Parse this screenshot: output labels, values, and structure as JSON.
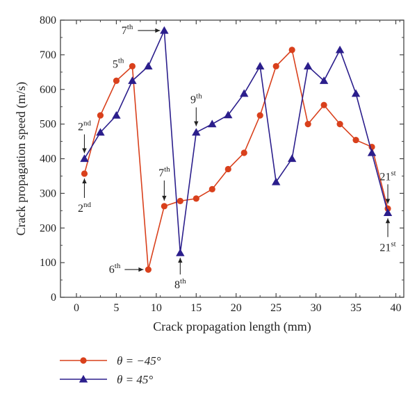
{
  "chart_data": {
    "type": "line",
    "xlabel": "Crack propagation length (mm)",
    "ylabel": "Crack propagation speed (m/s)",
    "xlim": [
      -2,
      41
    ],
    "ylim": [
      0,
      800
    ],
    "xticks": [
      0,
      5,
      10,
      15,
      20,
      25,
      30,
      35,
      40
    ],
    "yticks": [
      0,
      100,
      200,
      300,
      400,
      500,
      600,
      700,
      800
    ],
    "grid": false,
    "legend_position": "bottom-left",
    "series": [
      {
        "name": "θ = −45°",
        "color": "#d9401c",
        "marker": "circle",
        "x": [
          1,
          3,
          5,
          7,
          9,
          11,
          13,
          15,
          17,
          19,
          21,
          23,
          25,
          27,
          29,
          31,
          33,
          35,
          37,
          39
        ],
        "values": [
          357,
          525,
          625,
          667,
          80,
          263,
          278,
          285,
          312,
          370,
          417,
          525,
          667,
          714,
          500,
          555,
          500,
          454,
          434,
          256
        ]
      },
      {
        "name": "θ = 45°",
        "color": "#2b1e8c",
        "marker": "triangle",
        "x": [
          1,
          3,
          5,
          7,
          9,
          11,
          13,
          15,
          17,
          19,
          21,
          23,
          25,
          27,
          29,
          31,
          33,
          35,
          37,
          39
        ],
        "values": [
          400,
          476,
          525,
          625,
          667,
          770,
          128,
          476,
          500,
          526,
          588,
          667,
          333,
          400,
          667,
          625,
          714,
          588,
          417,
          244
        ]
      }
    ],
    "annotations": [
      {
        "base": "7",
        "sup": "th"
      },
      {
        "base": "5",
        "sup": "th"
      },
      {
        "base": "2",
        "sup": "nd"
      },
      {
        "base": "2",
        "sup": "nd"
      },
      {
        "base": "6",
        "sup": "th"
      },
      {
        "base": "7",
        "sup": "th"
      },
      {
        "base": "8",
        "sup": "th"
      },
      {
        "base": "9",
        "sup": "th"
      },
      {
        "base": "21",
        "sup": "st"
      },
      {
        "base": "21",
        "sup": "st"
      }
    ]
  }
}
